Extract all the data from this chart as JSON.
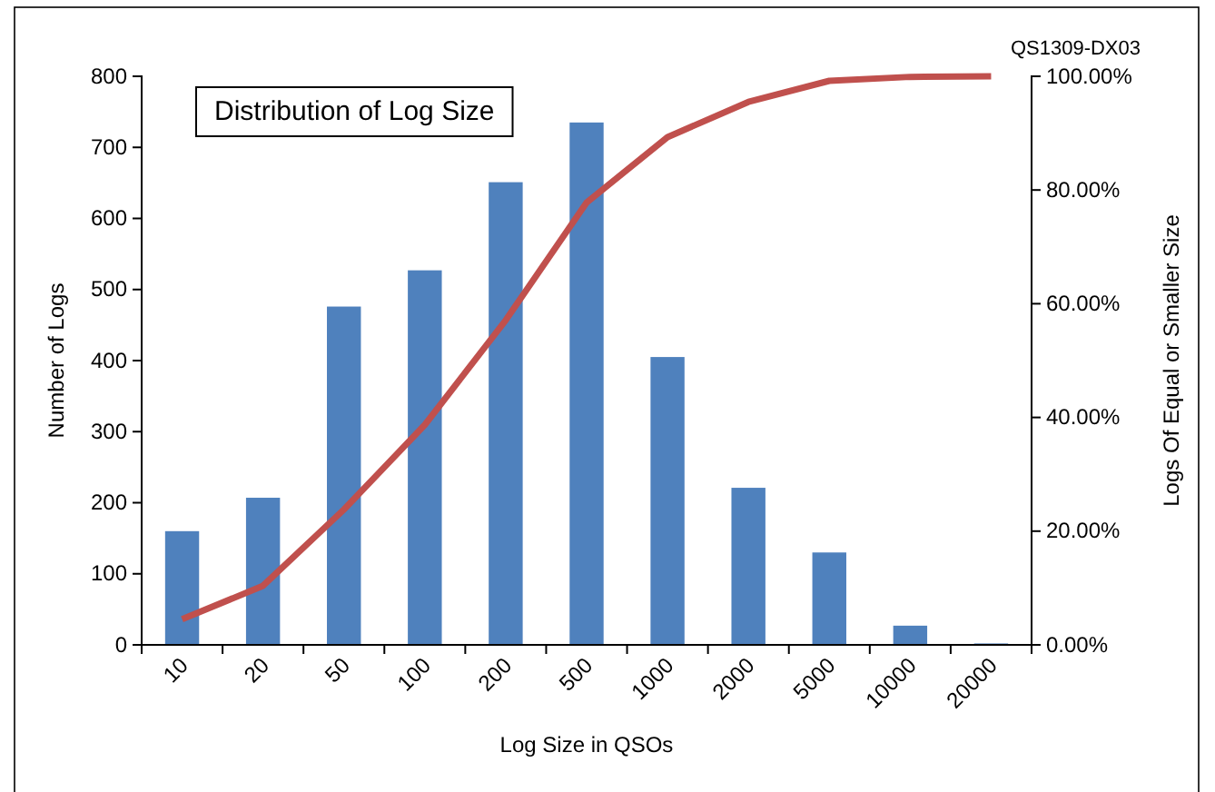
{
  "chart_data": {
    "type": "bar",
    "title": "Distribution of Log Size",
    "xlabel": "Log Size in QSOs",
    "ylabel": "Number of Logs",
    "y2label": "Logs Of Equal or Smaller Size",
    "annotations": [
      "QS1309-DX03"
    ],
    "categories": [
      "10",
      "20",
      "50",
      "100",
      "200",
      "500",
      "1000",
      "2000",
      "5000",
      "10000",
      "20000"
    ],
    "series": [
      {
        "color": "#4f81bd",
        "values": [
          160,
          207,
          476,
          527,
          651,
          735,
          405,
          221,
          130,
          27,
          2
        ]
      },
      {
        "type": "line",
        "axis": "y2",
        "color": "#c0504d",
        "values": [
          4.5,
          10.4,
          23.8,
          38.7,
          57.1,
          77.8,
          89.3,
          95.5,
          99.2,
          99.9,
          100
        ]
      }
    ],
    "ylim": [
      0,
      800
    ],
    "yticks": [
      0,
      100,
      200,
      300,
      400,
      500,
      600,
      700,
      800
    ],
    "y2lim": [
      0,
      100
    ],
    "y2ticks": [
      {
        "value": 0,
        "label": "0.00%"
      },
      {
        "value": 20,
        "label": "20.00%"
      },
      {
        "value": 40,
        "label": "40.00%"
      },
      {
        "value": 60,
        "label": "60.00%"
      },
      {
        "value": 80,
        "label": "80.00%"
      },
      {
        "value": 100,
        "label": "100.00%"
      }
    ],
    "grid": false,
    "marker": "none",
    "line_style": "solid"
  }
}
